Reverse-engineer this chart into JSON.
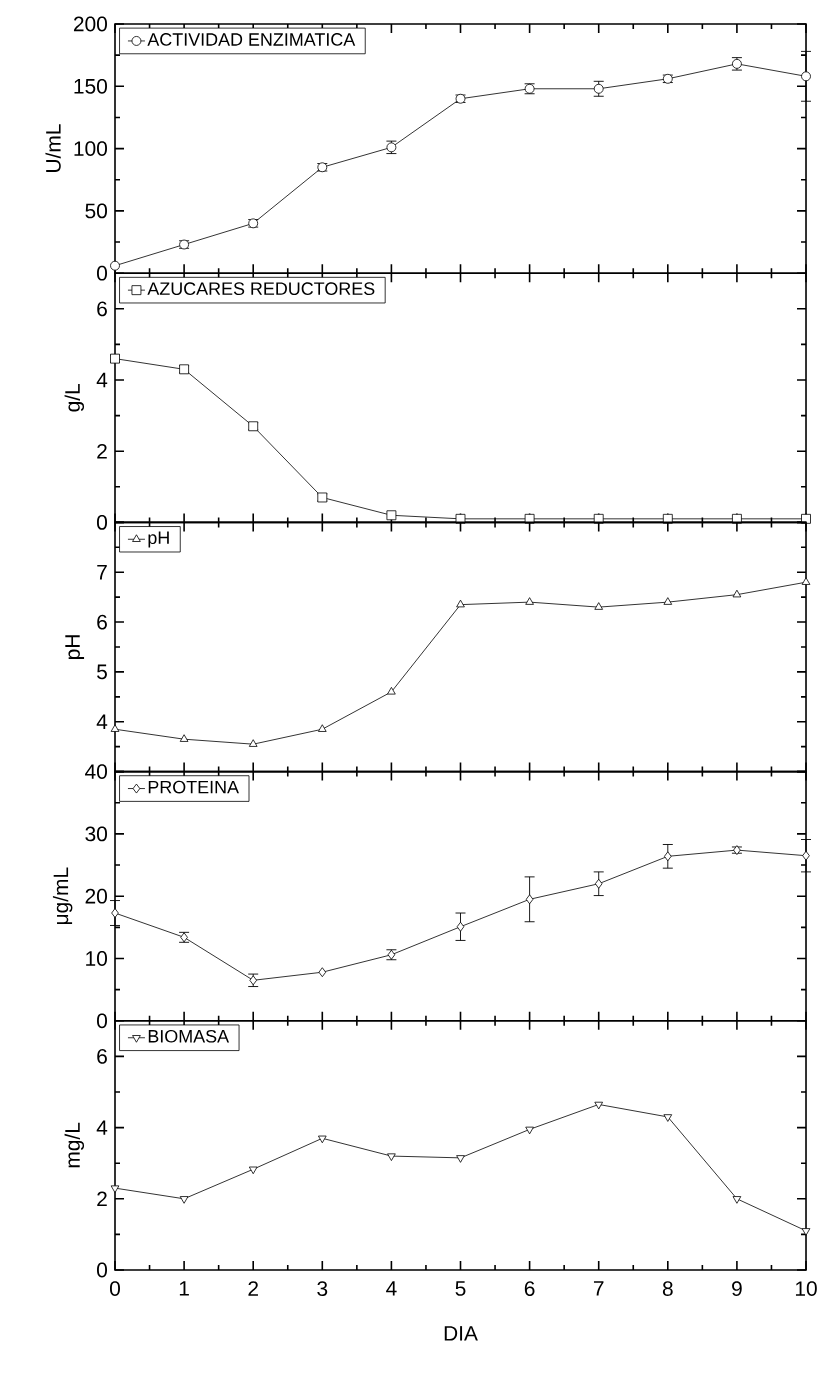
{
  "chart_data": [
    {
      "type": "line",
      "x": [
        0,
        1,
        2,
        3,
        4,
        5,
        6,
        7,
        8,
        9,
        10
      ],
      "xlim": [
        0,
        10
      ],
      "xticks": [
        0,
        1,
        2,
        3,
        4,
        5,
        6,
        7,
        8,
        9,
        10
      ],
      "ylim": [
        0,
        200
      ],
      "yticks": [
        0,
        50,
        100,
        150,
        200
      ],
      "ylabel": "U/mL",
      "legend": "top left",
      "marker": "circle",
      "tick_labels": "y",
      "series": [
        {
          "name": "ACTIVIDAD ENZIMATICA",
          "color": "#000000",
          "values": [
            6,
            23,
            40,
            85,
            101,
            140,
            148,
            148,
            156,
            168,
            158
          ],
          "errors": [
            null,
            3,
            3,
            3,
            5,
            3,
            4,
            6,
            3,
            5,
            20
          ]
        }
      ]
    },
    {
      "type": "line",
      "x": [
        0,
        1,
        2,
        3,
        4,
        5,
        6,
        7,
        8,
        9,
        10
      ],
      "xlim": [
        0,
        10
      ],
      "xticks": [
        0,
        1,
        2,
        3,
        4,
        5,
        6,
        7,
        8,
        9,
        10
      ],
      "ylim": [
        0,
        7
      ],
      "yticks": [
        0,
        2,
        4,
        6
      ],
      "ylabel": "g/L",
      "legend": "top left",
      "marker": "square",
      "tick_labels": "y",
      "series": [
        {
          "name": "AZUCARES REDUCTORES",
          "color": "#000000",
          "values": [
            4.6,
            4.3,
            2.7,
            0.7,
            0.2,
            0.1,
            0.1,
            0.1,
            0.1,
            0.1,
            0.1
          ],
          "errors": [
            0.1,
            0.1,
            0.1,
            0.1,
            null,
            null,
            null,
            null,
            null,
            null,
            null
          ]
        }
      ]
    },
    {
      "type": "line",
      "x": [
        0,
        1,
        2,
        3,
        4,
        5,
        6,
        7,
        8,
        9,
        10
      ],
      "xlim": [
        0,
        10
      ],
      "xticks": [
        0,
        1,
        2,
        3,
        4,
        5,
        6,
        7,
        8,
        9,
        10
      ],
      "ylim": [
        3,
        8
      ],
      "yticks": [
        {
          "value": 3,
          "label": null
        },
        4,
        5,
        6,
        7,
        {
          "value": 8,
          "label": null
        }
      ],
      "ylabel": "pH",
      "legend": "top left",
      "marker": "triangle",
      "tick_labels": "y",
      "series": [
        {
          "name": "pH",
          "color": "#000000",
          "values": [
            3.85,
            3.65,
            3.55,
            3.85,
            4.6,
            6.35,
            6.4,
            6.3,
            6.4,
            6.55,
            6.8
          ]
        }
      ]
    },
    {
      "type": "line",
      "x": [
        0,
        1,
        2,
        3,
        4,
        5,
        6,
        7,
        8,
        9,
        10
      ],
      "xlim": [
        0,
        10
      ],
      "xticks": [
        0,
        1,
        2,
        3,
        4,
        5,
        6,
        7,
        8,
        9,
        10
      ],
      "ylim": [
        0,
        40
      ],
      "yticks": [
        0,
        10,
        20,
        30,
        40
      ],
      "ylabel": "μg/mL",
      "legend": "top left",
      "marker": "diamond",
      "tick_labels": "y",
      "series": [
        {
          "name": "PROTEINA",
          "color": "#000000",
          "values": [
            17.3,
            13.4,
            6.5,
            7.8,
            10.6,
            15.1,
            19.5,
            22,
            26.4,
            27.4,
            26.5
          ],
          "errors": [
            2,
            0.8,
            1,
            null,
            0.8,
            2.2,
            3.6,
            1.9,
            1.9,
            0.5,
            2.6
          ]
        }
      ]
    },
    {
      "type": "line",
      "x": [
        0,
        1,
        2,
        3,
        4,
        5,
        6,
        7,
        8,
        9,
        10
      ],
      "xlim": [
        0,
        10
      ],
      "xticks": [
        0,
        1,
        2,
        3,
        4,
        5,
        6,
        7,
        8,
        9,
        10
      ],
      "ylim": [
        0,
        7
      ],
      "yticks": [
        0,
        2,
        4,
        6
      ],
      "xlabel": "DIA",
      "ylabel": "mg/L",
      "legend": "top left",
      "marker": "triangle down",
      "series": [
        {
          "name": "BIOMASA",
          "color": "#000000",
          "values": [
            2.3,
            2.0,
            2.83,
            3.7,
            3.2,
            3.15,
            3.95,
            4.65,
            4.3,
            2.0,
            1.1
          ]
        }
      ]
    }
  ]
}
